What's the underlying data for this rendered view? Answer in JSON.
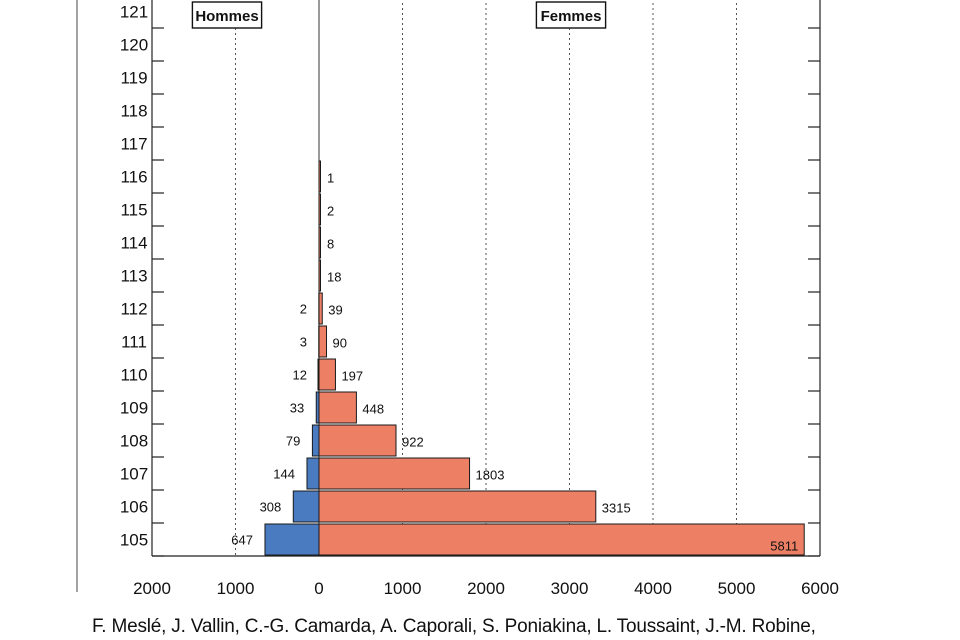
{
  "chart_data": {
    "type": "bar",
    "orientation": "horizontal-pyramid",
    "categories": [
      "105",
      "106",
      "107",
      "108",
      "109",
      "110",
      "111",
      "112",
      "113",
      "114",
      "115",
      "116",
      "117",
      "118",
      "119",
      "120",
      "121"
    ],
    "series": [
      {
        "name": "Hommes",
        "values": [
          647,
          308,
          144,
          79,
          33,
          12,
          3,
          2,
          0,
          0,
          0,
          0,
          0,
          0,
          0,
          0,
          0
        ]
      },
      {
        "name": "Femmes",
        "values": [
          5811,
          3315,
          1803,
          922,
          448,
          197,
          90,
          39,
          18,
          8,
          2,
          1,
          0,
          0,
          0,
          0,
          0
        ]
      }
    ],
    "value_labels": {
      "Hommes": [
        "647",
        "308",
        "144",
        "79",
        "33",
        "12",
        "3",
        "2",
        "",
        "",
        "",
        "",
        "",
        "",
        "",
        "",
        ""
      ],
      "Femmes": [
        "5811",
        "3315",
        "1803",
        "922",
        "448",
        "197",
        "90",
        "39",
        "18",
        "8",
        "2",
        "1",
        "",
        "",
        "",
        "",
        ""
      ]
    },
    "xticks": [
      "2000",
      "1000",
      "0",
      "1000",
      "2000",
      "3000",
      "4000",
      "5000",
      "6000"
    ],
    "xlim": [
      -2000,
      6000
    ],
    "grid": true,
    "colors": {
      "Hommes": "#4a7bc0",
      "Femmes": "#ed7f64",
      "outline": "#1a1a1a",
      "grid": "#555555"
    }
  },
  "source_text": "F. Meslé, J. Vallin, C.-G. Camarda, A. Caporali, S. Poniakina, L. Toussaint, J.-M. Robine,"
}
